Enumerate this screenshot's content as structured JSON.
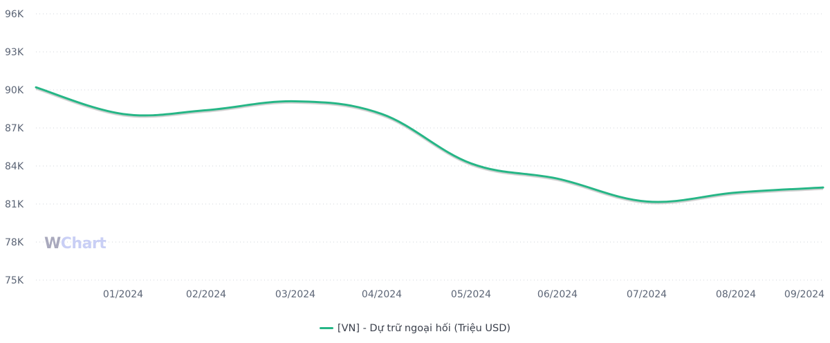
{
  "chart_data": {
    "type": "line",
    "title": "",
    "xlabel": "",
    "ylabel": "",
    "y_ticks": [
      "96K",
      "93K",
      "90K",
      "87K",
      "84K",
      "81K",
      "78K",
      "75K"
    ],
    "y_tick_values": [
      96000,
      93000,
      90000,
      87000,
      84000,
      81000,
      78000,
      75000
    ],
    "ylim": [
      75000,
      96000
    ],
    "x_ticks": [
      "01/2024",
      "02/2024",
      "03/2024",
      "04/2024",
      "05/2024",
      "06/2024",
      "07/2024",
      "08/2024",
      "09/2024"
    ],
    "x": [
      "12/2023",
      "01/2024",
      "02/2024",
      "03/2024",
      "04/2024",
      "05/2024",
      "06/2024",
      "07/2024",
      "08/2024",
      "09/2024"
    ],
    "series": [
      {
        "name": "[VN] - Dự trữ ngoại hối (Triệu USD)",
        "color": "#26b686",
        "values": [
          90200,
          88100,
          88400,
          89100,
          88100,
          84200,
          83000,
          81200,
          81900,
          82300
        ]
      }
    ],
    "grid": true,
    "legend_position": "bottom"
  },
  "legend": {
    "label": "[VN] - Dự trữ ngoại hối (Triệu USD)",
    "color": "#26b686"
  },
  "watermark": {
    "w": "W",
    "chart": "Chart"
  }
}
